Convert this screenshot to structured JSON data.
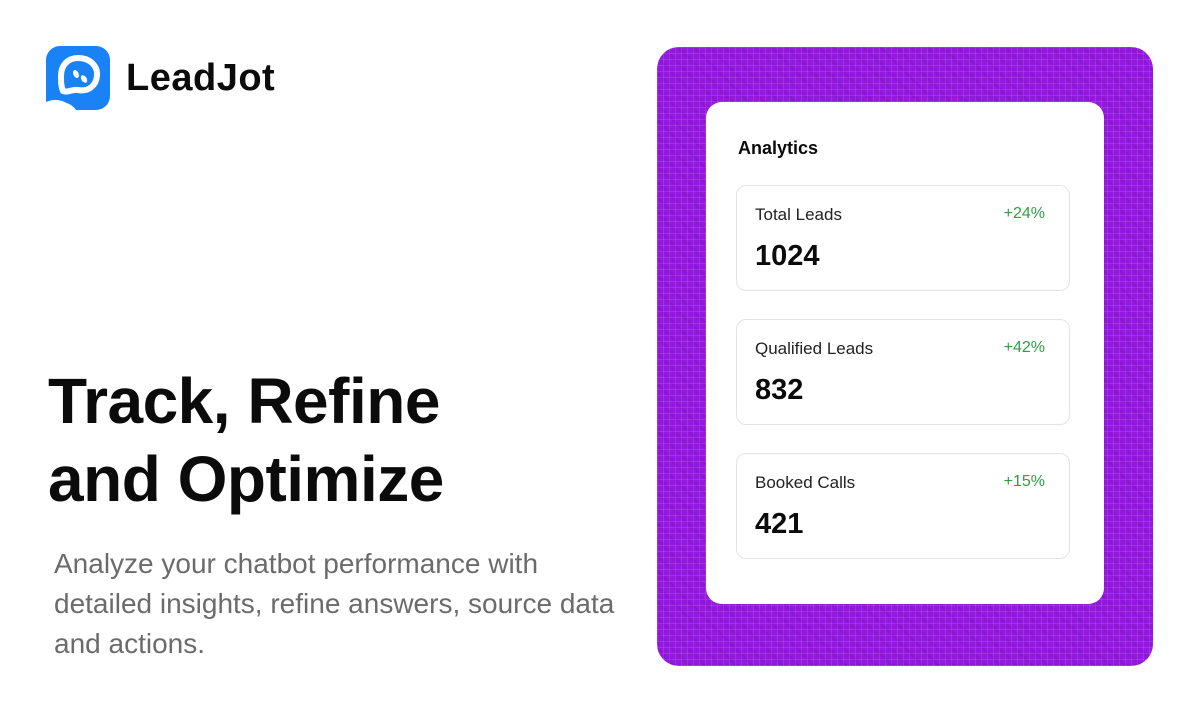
{
  "brand": {
    "name": "LeadJot",
    "logo_color": "#1a82f7",
    "logo_icon": "chat-bubble-face-icon"
  },
  "hero": {
    "headline_line1": "Track, Refine",
    "headline_line2": "and Optimize",
    "subtitle": "Analyze your chatbot performance with detailed insights, refine answers, source data and actions."
  },
  "panel": {
    "background_color": "#9418e0"
  },
  "analytics": {
    "title": "Analytics",
    "positive_color": "#2ea043",
    "stats": [
      {
        "label": "Total Leads",
        "change": "+24%",
        "value": "1024"
      },
      {
        "label": "Qualified Leads",
        "change": "+42%",
        "value": "832"
      },
      {
        "label": "Booked Calls",
        "change": "+15%",
        "value": "421"
      }
    ]
  }
}
